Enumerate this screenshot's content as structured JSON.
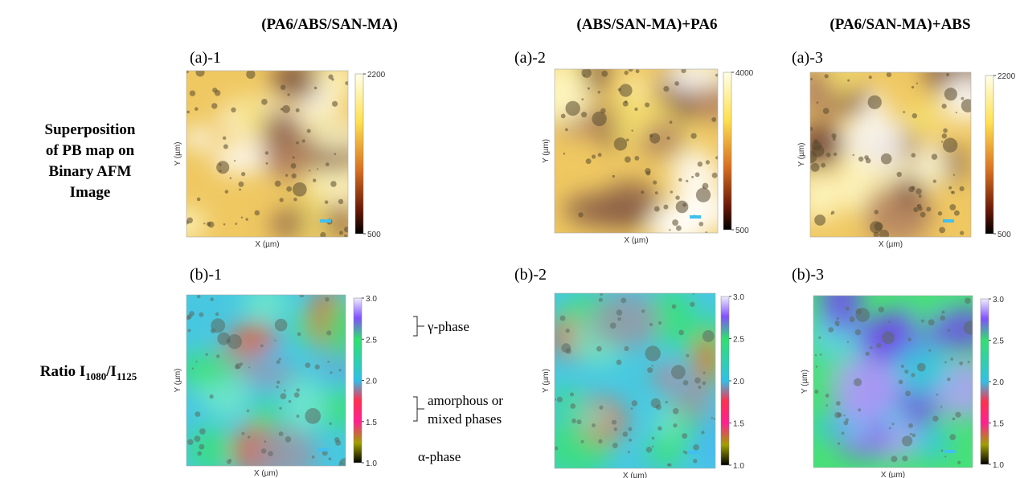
{
  "column_titles": [
    "(PA6/ABS/SAN-MA)",
    "(ABS/SAN-MA)+PA6",
    "(PA6/SAN-MA)+ABS"
  ],
  "row_labels": [
    {
      "lines": [
        "Superposition",
        "of PB map on",
        "Binary AFM",
        "Image"
      ]
    },
    {
      "parts": [
        "Ratio I",
        "1080",
        "/I",
        "1125"
      ]
    }
  ],
  "panels": [
    {
      "label": "(a)-1",
      "x_label": "X (µm)",
      "y_label": "Y (µm)",
      "colorbar_ticks": [
        "2200",
        "500"
      ]
    },
    {
      "label": "(a)-2",
      "x_label": "X (µm)",
      "y_label": "Y (µm)",
      "colorbar_ticks": [
        "4000",
        "500"
      ]
    },
    {
      "label": "(a)-3",
      "x_label": "X (µm)",
      "y_label": "Y (µm)",
      "colorbar_ticks": [
        "2200",
        "500"
      ]
    },
    {
      "label": "(b)-1",
      "x_label": "X (µm)",
      "y_label": "Y (µm)",
      "colorbar_ticks": [
        "3.0",
        "2.5",
        "2.0",
        "1.5",
        "1.0"
      ]
    },
    {
      "label": "(b)-2",
      "x_label": "X (µm)",
      "y_label": "Y (µm)",
      "colorbar_ticks": [
        "3.0",
        "2.5",
        "2.0",
        "1.5",
        "1.0"
      ]
    },
    {
      "label": "(b)-3",
      "x_label": "X (µm)",
      "y_label": "Y (µm)",
      "colorbar_ticks": [
        "3.0",
        "2.5",
        "2.0",
        "1.5",
        "1.0"
      ]
    }
  ],
  "annotations": [
    "γ-phase",
    "amorphous or",
    "mixed phases",
    "α-phase"
  ]
}
